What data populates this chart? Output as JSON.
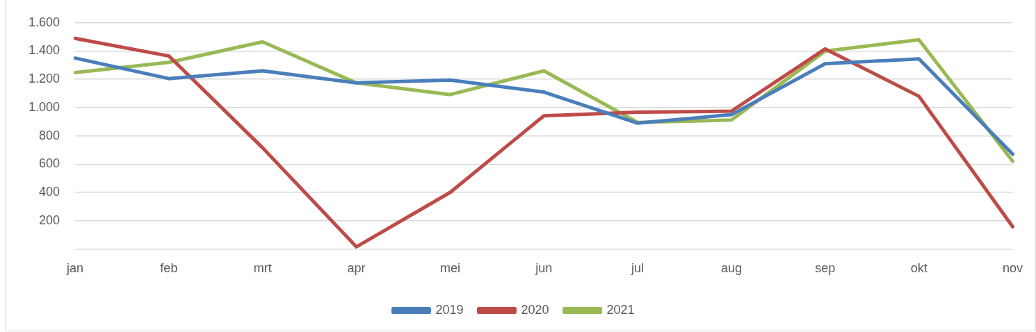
{
  "chart_data": {
    "type": "line",
    "categories": [
      "jan",
      "feb",
      "mrt",
      "apr",
      "mei",
      "jun",
      "jul",
      "aug",
      "sep",
      "okt",
      "nov"
    ],
    "series": [
      {
        "name": "2019",
        "color": "#4a7ebb",
        "values": [
          1350,
          1205,
          1260,
          1175,
          1195,
          1110,
          890,
          950,
          1310,
          1345,
          670
        ]
      },
      {
        "name": "2020",
        "color": "#be4b48",
        "values": [
          1490,
          1365,
          715,
          15,
          400,
          942,
          967,
          975,
          1415,
          1080,
          157
        ]
      },
      {
        "name": "2021",
        "color": "#98b954",
        "values": [
          1248,
          1320,
          1465,
          1175,
          1092,
          1260,
          895,
          912,
          1400,
          1480,
          620
        ]
      }
    ],
    "ylim": [
      0,
      1600
    ],
    "yticks": [
      {
        "value": 0,
        "label": null
      },
      {
        "value": 200,
        "label": "200"
      },
      {
        "value": 400,
        "label": "400"
      },
      {
        "value": 600,
        "label": "600"
      },
      {
        "value": 800,
        "label": "800"
      },
      {
        "value": 1000,
        "label": "1.000"
      },
      {
        "value": 1200,
        "label": "1.200"
      },
      {
        "value": 1400,
        "label": "1.400"
      },
      {
        "value": 1600,
        "label": "1.600"
      }
    ],
    "grid": "y",
    "legend": "bottom",
    "marker": "none",
    "line_style": "solid"
  }
}
